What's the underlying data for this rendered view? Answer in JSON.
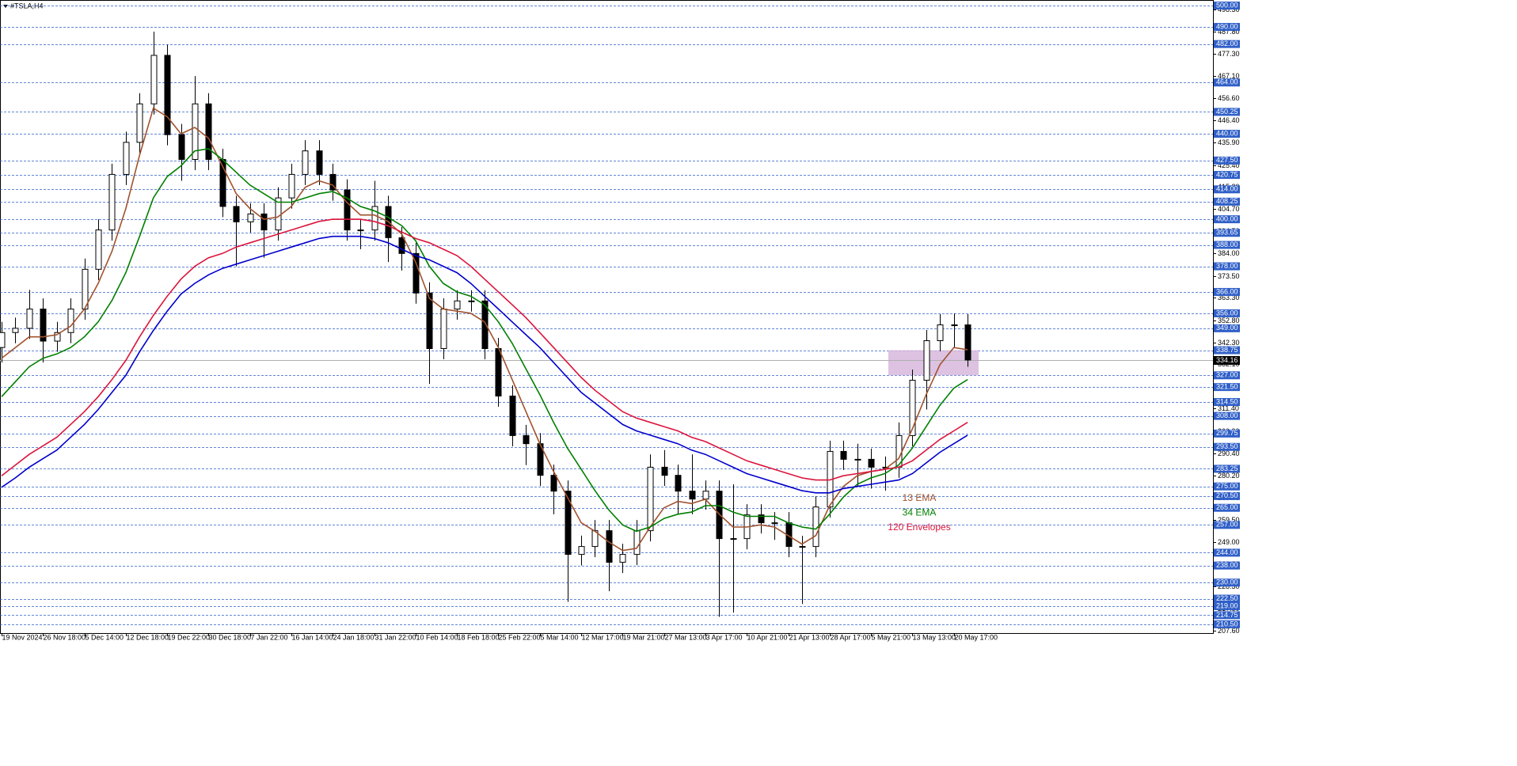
{
  "chart_data": {
    "type": "candlestick",
    "symbol": "#TSLA,H4",
    "categories": [
      "19 Nov 2024",
      null,
      null,
      "26 Nov 18:00",
      null,
      null,
      "5 Dec 14:00",
      null,
      null,
      "12 Dec 18:00",
      null,
      null,
      "19 Dec 22:00",
      null,
      null,
      "30 Dec 18:00",
      null,
      null,
      "7 Jan 22:00",
      null,
      null,
      "16 Jan 14:00",
      null,
      null,
      "24 Jan 18:00",
      null,
      null,
      "31 Jan 22:00",
      null,
      null,
      "10 Feb 14:00",
      null,
      null,
      "18 Feb 18:00",
      null,
      null,
      "25 Feb 22:00",
      null,
      null,
      "5 Mar 14:00",
      null,
      null,
      "12 Mar 17:00",
      null,
      null,
      "19 Mar 21:00",
      null,
      null,
      "27 Mar 13:00",
      null,
      null,
      "3 Apr 17:00",
      null,
      null,
      "10 Apr 21:00",
      null,
      null,
      "21 Apr 13:00",
      null,
      null,
      "28 Apr 17:00",
      null,
      null,
      "5 May 21:00",
      null,
      null,
      "13 May 13:00",
      null,
      null,
      "20 May 17:00",
      null
    ],
    "open": [
      340,
      347,
      349,
      358,
      343,
      347,
      358,
      376.6,
      395,
      421,
      436,
      454,
      476.7,
      439.6,
      428,
      454,
      428,
      406,
      398.8,
      402.5,
      395,
      410,
      421,
      432,
      421,
      413.7,
      395,
      395,
      406,
      391.4,
      384,
      365.5,
      339.5,
      358,
      361.8,
      361.8,
      339.5,
      317.3,
      298.8,
      295,
      280.2,
      272.8,
      243.2,
      246.9,
      254.3,
      239.5,
      243.2,
      254.3,
      284,
      280.2,
      272.8,
      269.1,
      272.8,
      250.6,
      250.6,
      261.7,
      258,
      258,
      246.9,
      246.9,
      265.4,
      291.4,
      287.7,
      287.7,
      284,
      284,
      298.8,
      324.7,
      343.2,
      350.6,
      350.6
    ],
    "high": [
      352,
      354,
      367,
      363,
      352,
      363,
      381.6,
      400,
      426,
      441,
      459,
      487.8,
      481.7,
      444.6,
      467,
      459,
      433,
      411,
      407.5,
      407.5,
      415,
      426,
      437,
      437,
      426,
      418.7,
      400,
      418,
      411,
      396.4,
      389,
      370.5,
      363,
      366.8,
      366.8,
      366.8,
      344.5,
      322.3,
      303.8,
      300,
      285.2,
      277.8,
      252,
      259.3,
      259.3,
      248.2,
      259.3,
      290,
      292,
      285.2,
      290,
      277.8,
      277.8,
      276,
      266.7,
      266.7,
      263,
      263,
      251.9,
      270.4,
      296.4,
      296.4,
      295,
      292.7,
      289,
      305,
      329.7,
      348.2,
      355.6,
      356,
      355.6
    ],
    "low": [
      333,
      342,
      344,
      333,
      338,
      342,
      353,
      371.6,
      390,
      416,
      431,
      449,
      434.6,
      418,
      423,
      423,
      401,
      378,
      393.8,
      382,
      390,
      405,
      416,
      416,
      408.7,
      390,
      386,
      390,
      380,
      376,
      360.5,
      323,
      334.5,
      353,
      356.8,
      334.5,
      312.3,
      293.8,
      285,
      275.2,
      262,
      221,
      238,
      241.9,
      226,
      234.5,
      238.2,
      249.3,
      275.2,
      262,
      262,
      264.1,
      214,
      216,
      245.6,
      253,
      250,
      241.9,
      220,
      241.9,
      260.4,
      282.7,
      275,
      274,
      273,
      279,
      293.8,
      311,
      338.2,
      340,
      331
    ],
    "close": [
      347,
      349,
      358,
      343,
      347,
      358,
      376.6,
      395,
      421,
      436,
      454,
      476.7,
      439.6,
      428,
      454,
      428,
      406,
      398.8,
      402.5,
      395,
      410,
      421,
      432,
      421,
      413.7,
      395,
      395,
      406,
      391.4,
      384,
      365.5,
      339.5,
      358,
      361.8,
      361.8,
      339.5,
      317.3,
      298.8,
      295,
      280.2,
      272.8,
      243.2,
      246.9,
      254.3,
      239.5,
      243.2,
      254.3,
      284,
      280.2,
      272.8,
      269.1,
      272.8,
      250.6,
      250.6,
      261.7,
      258,
      258,
      246.9,
      246.9,
      265.4,
      291.4,
      287.7,
      287.7,
      284,
      284,
      298.8,
      324.7,
      343.2,
      350.6,
      350.6,
      334.16
    ],
    "bull_color": "#ffffff",
    "bear_color": "#000000",
    "series": [
      {
        "name": "13 EMA",
        "color": "#a0522d",
        "values": [
          335,
          340,
          345,
          345,
          346,
          350,
          358,
          370,
          385,
          405,
          430,
          452,
          448,
          440,
          443,
          438,
          425,
          412,
          405,
          400,
          401,
          406,
          415,
          418,
          416,
          408,
          402,
          402,
          399,
          393,
          380,
          363,
          358,
          357,
          356,
          352,
          340,
          325,
          310,
          295,
          282,
          270,
          258,
          254,
          249,
          245,
          246,
          256,
          265,
          268,
          267,
          269,
          262,
          256,
          256,
          257,
          256,
          252,
          248,
          252,
          266,
          275,
          280,
          282,
          283,
          288,
          302,
          318,
          332,
          340,
          339
        ]
      },
      {
        "name": "34 EMA",
        "color": "#008000",
        "values": [
          317,
          324,
          331,
          335,
          337,
          340,
          345,
          352,
          362,
          375,
          392,
          410,
          420,
          425,
          432,
          433,
          428,
          422,
          416,
          412,
          408,
          408,
          410,
          412,
          413,
          410,
          406,
          404,
          401,
          397,
          390,
          378,
          370,
          366,
          364,
          360,
          352,
          342,
          330,
          318,
          305,
          293,
          283,
          273,
          264,
          257,
          254,
          256,
          260,
          262,
          263,
          266,
          266,
          263,
          261,
          261,
          261,
          258,
          256,
          255,
          262,
          270,
          276,
          279,
          281,
          285,
          293,
          303,
          313,
          321,
          325
        ]
      },
      {
        "name": "120 Envelopes",
        "color": "#dc143c",
        "values": [
          280,
          285,
          290,
          294,
          298,
          304,
          310,
          317,
          325,
          334,
          345,
          355,
          364,
          372,
          378,
          382,
          384,
          387,
          389,
          391,
          393,
          395,
          397,
          399,
          400,
          400,
          400,
          399,
          397,
          394,
          391,
          389,
          386,
          383,
          378,
          372,
          366,
          360,
          354,
          347,
          340,
          333,
          326,
          320,
          315,
          310,
          307,
          305,
          303,
          301,
          298,
          296,
          293,
          290,
          287,
          285,
          283,
          281,
          279,
          278,
          278,
          280,
          281,
          282,
          283,
          284,
          287,
          292,
          297,
          301,
          305
        ],
        "lower_color": "#0000cd",
        "lower": [
          274.6,
          279,
          284,
          288,
          292,
          298,
          304,
          311,
          319,
          327,
          338,
          348,
          357,
          365,
          370,
          374,
          377,
          379,
          381,
          383,
          385,
          387,
          389,
          391,
          392,
          392,
          392,
          391,
          389,
          386,
          383,
          381,
          378,
          375,
          370,
          364,
          358,
          352,
          346,
          340,
          333,
          326,
          319,
          314,
          309,
          304,
          301,
          299,
          297,
          295,
          292,
          290,
          287,
          284,
          281,
          279,
          277,
          275,
          273,
          272,
          272,
          274,
          275,
          276,
          277,
          278,
          281,
          286,
          291,
          295,
          299
        ]
      }
    ],
    "ylim": [
      206.4,
      502.6
    ],
    "yticks": [
      {
        "value": 498.3,
        "label": "498.30"
      },
      {
        "value": 487.8,
        "label": "487.80"
      },
      {
        "value": 477.3,
        "label": "477.30"
      },
      {
        "value": 467.1,
        "label": "467.10"
      },
      {
        "value": 456.6,
        "label": "456.60"
      },
      {
        "value": 446.4,
        "label": "446.40"
      },
      {
        "value": 435.9,
        "label": "435.90"
      },
      {
        "value": 425.4,
        "label": "425.40"
      },
      {
        "value": 415.2,
        "label": "415.20"
      },
      {
        "value": 404.7,
        "label": "404.70"
      },
      {
        "value": 394.5,
        "label": "394.50"
      },
      {
        "value": 384,
        "label": "384.00"
      },
      {
        "value": 373.5,
        "label": "373.50"
      },
      {
        "value": 363.3,
        "label": "363.30"
      },
      {
        "value": 352.8,
        "label": "352.80"
      },
      {
        "value": 342.3,
        "label": "342.30"
      },
      {
        "value": 332.1,
        "label": "332.10"
      },
      {
        "value": 321.6,
        "label": "321.60"
      },
      {
        "value": 311.4,
        "label": "311.40"
      },
      {
        "value": 300.9,
        "label": "300.90"
      },
      {
        "value": 290.4,
        "label": "290.40"
      },
      {
        "value": 280.2,
        "label": "280.20"
      },
      {
        "value": 269.7,
        "label": "269.70"
      },
      {
        "value": 259.5,
        "label": "259.50"
      },
      {
        "value": 249,
        "label": "249.00"
      },
      {
        "value": 238.5,
        "label": "238.50"
      },
      {
        "value": 228.3,
        "label": "228.30"
      },
      {
        "value": 217.8,
        "label": "217.80"
      },
      {
        "value": 207.6,
        "label": "207.60"
      }
    ],
    "levels_color": "#2f5fc8",
    "levels": [
      {
        "value": 500,
        "label": "500.00"
      },
      {
        "value": 490,
        "label": "490.00"
      },
      {
        "value": 482,
        "label": "482.00"
      },
      {
        "value": 464,
        "label": "464.00"
      },
      {
        "value": 450.25,
        "label": "450.25"
      },
      {
        "value": 440,
        "label": "440.00"
      },
      {
        "value": 427.5,
        "label": "427.50"
      },
      {
        "value": 420.75,
        "label": "420.75"
      },
      {
        "value": 414,
        "label": "414.00"
      },
      {
        "value": 408.25,
        "label": "408.25"
      },
      {
        "value": 400,
        "label": "400.00"
      },
      {
        "value": 393.65,
        "label": "393.65"
      },
      {
        "value": 388,
        "label": "388.00"
      },
      {
        "value": 378,
        "label": "378.00"
      },
      {
        "value": 366,
        "label": "366.00"
      },
      {
        "value": 356,
        "label": "356.00"
      },
      {
        "value": 349,
        "label": "349.00"
      },
      {
        "value": 338.75,
        "label": "338.75"
      },
      {
        "value": 327,
        "label": "327.00"
      },
      {
        "value": 321.5,
        "label": "321.50"
      },
      {
        "value": 314.5,
        "label": "314.50"
      },
      {
        "value": 308,
        "label": "308.00"
      },
      {
        "value": 299.75,
        "label": "299.75"
      },
      {
        "value": 293.5,
        "label": "293.50"
      },
      {
        "value": 283.25,
        "label": "283.25"
      },
      {
        "value": 275,
        "label": "275.00"
      },
      {
        "value": 270.5,
        "label": "270.50"
      },
      {
        "value": 265,
        "label": "265.00"
      },
      {
        "value": 257,
        "label": "257.00"
      },
      {
        "value": 244,
        "label": "244.00"
      },
      {
        "value": 238,
        "label": "238.00"
      },
      {
        "value": 230,
        "label": "230.00"
      },
      {
        "value": 222.5,
        "label": "222.50"
      },
      {
        "value": 219,
        "label": "219.00"
      },
      {
        "value": 214.75,
        "label": "214.75"
      },
      {
        "value": 210.5,
        "label": "210.50"
      }
    ],
    "current_price": 334.16,
    "zone": {
      "low": 327,
      "high": 338.75,
      "color": "#d7b7dd"
    }
  }
}
